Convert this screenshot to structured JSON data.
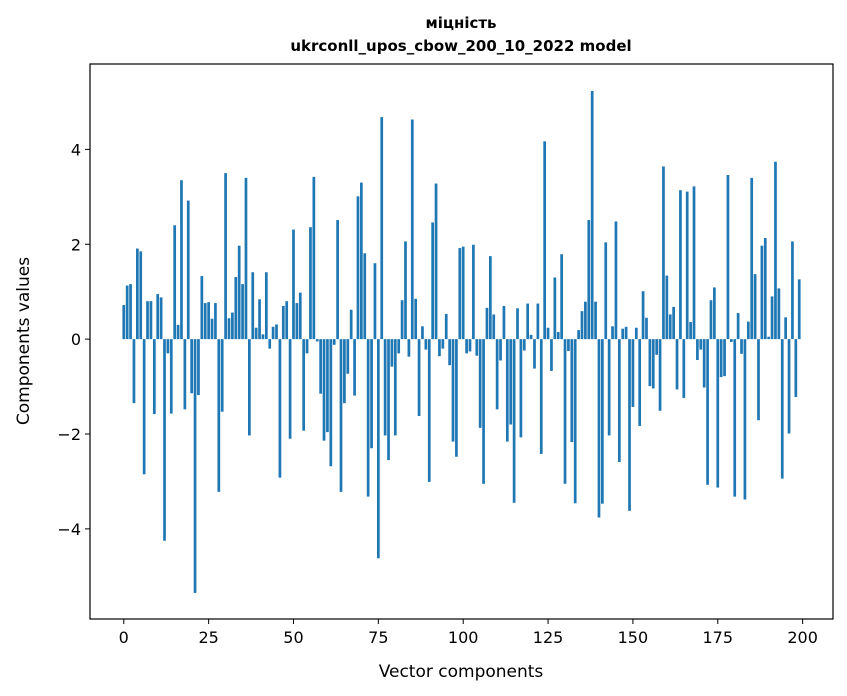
{
  "chart_data": {
    "type": "bar",
    "title": "міцність",
    "subtitle": "ukrconll_upos_cbow_200_10_2022 model",
    "xlabel": "Vector components",
    "ylabel": "Components values",
    "xlim": [
      -9.95,
      208.95
    ],
    "ylim": [
      -5.9,
      5.8
    ],
    "xticks": [
      0,
      25,
      50,
      75,
      100,
      125,
      150,
      175,
      200
    ],
    "yticks": [
      -4,
      -2,
      0,
      2,
      4
    ],
    "ytick_labels": [
      "−4",
      "−2",
      "0",
      "2",
      "4"
    ],
    "grid": false,
    "bar_color": "#1f77b4",
    "x": [
      0,
      1,
      2,
      3,
      4,
      5,
      6,
      7,
      8,
      9,
      10,
      11,
      12,
      13,
      14,
      15,
      16,
      17,
      18,
      19,
      20,
      21,
      22,
      23,
      24,
      25,
      26,
      27,
      28,
      29,
      30,
      31,
      32,
      33,
      34,
      35,
      36,
      37,
      38,
      39,
      40,
      41,
      42,
      43,
      44,
      45,
      46,
      47,
      48,
      49,
      50,
      51,
      52,
      53,
      54,
      55,
      56,
      57,
      58,
      59,
      60,
      61,
      62,
      63,
      64,
      65,
      66,
      67,
      68,
      69,
      70,
      71,
      72,
      73,
      74,
      75,
      76,
      77,
      78,
      79,
      80,
      81,
      82,
      83,
      84,
      85,
      86,
      87,
      88,
      89,
      90,
      91,
      92,
      93,
      94,
      95,
      96,
      97,
      98,
      99,
      100,
      101,
      102,
      103,
      104,
      105,
      106,
      107,
      108,
      109,
      110,
      111,
      112,
      113,
      114,
      115,
      116,
      117,
      118,
      119,
      120,
      121,
      122,
      123,
      124,
      125,
      126,
      127,
      128,
      129,
      130,
      131,
      132,
      133,
      134,
      135,
      136,
      137,
      138,
      139,
      140,
      141,
      142,
      143,
      144,
      145,
      146,
      147,
      148,
      149,
      150,
      151,
      152,
      153,
      154,
      155,
      156,
      157,
      158,
      159,
      160,
      161,
      162,
      163,
      164,
      165,
      166,
      167,
      168,
      169,
      170,
      171,
      172,
      173,
      174,
      175,
      176,
      177,
      178,
      179,
      180,
      181,
      182,
      183,
      184,
      185,
      186,
      187,
      188,
      189,
      190,
      191,
      192,
      193,
      194,
      195,
      196,
      197,
      198,
      199
    ],
    "values": [
      0.72,
      1.13,
      1.16,
      -1.35,
      1.91,
      1.85,
      -2.85,
      0.8,
      0.8,
      -1.58,
      0.95,
      0.88,
      -4.25,
      -0.3,
      -1.57,
      2.4,
      0.3,
      3.35,
      -1.48,
      2.92,
      -1.14,
      -5.35,
      -1.18,
      1.33,
      0.76,
      0.78,
      0.43,
      0.76,
      -3.22,
      -1.53,
      3.5,
      0.44,
      0.56,
      1.31,
      1.97,
      1.16,
      3.4,
      -2.03,
      1.41,
      0.24,
      0.84,
      0.1,
      1.41,
      -0.2,
      0.26,
      0.31,
      -2.92,
      0.7,
      0.8,
      -2.1,
      2.31,
      0.76,
      0.98,
      -1.93,
      -0.3,
      2.36,
      3.42,
      -0.05,
      -1.15,
      -2.14,
      -1.96,
      -2.68,
      -0.12,
      2.51,
      -3.22,
      -1.35,
      -0.73,
      0.62,
      -1.19,
      3.01,
      3.3,
      1.81,
      -3.32,
      -2.3,
      1.6,
      -4.62,
      4.68,
      -2.03,
      -2.55,
      -0.58,
      -2.03,
      -0.3,
      0.82,
      2.06,
      -0.37,
      4.63,
      0.85,
      -1.62,
      0.27,
      -0.22,
      -3.01,
      2.46,
      3.28,
      -0.36,
      -0.2,
      0.53,
      -0.55,
      -2.16,
      -2.48,
      1.92,
      1.95,
      -0.3,
      -0.26,
      1.99,
      -0.35,
      -1.87,
      -3.05,
      0.66,
      1.75,
      0.52,
      -1.48,
      -0.45,
      0.7,
      -2.16,
      -1.8,
      -3.45,
      0.65,
      -2.07,
      -0.24,
      0.75,
      0.09,
      -0.62,
      0.75,
      -2.42,
      4.17,
      0.24,
      -0.67,
      1.3,
      0.15,
      1.79,
      -3.05,
      -0.25,
      -2.17,
      -3.46,
      0.19,
      0.59,
      0.79,
      2.51,
      5.23,
      0.79,
      -3.76,
      -3.47,
      2.04,
      -2.03,
      0.27,
      2.48,
      -2.59,
      0.22,
      0.26,
      -3.62,
      -1.43,
      0.24,
      -1.83,
      1.01,
      0.45,
      -0.99,
      -1.04,
      -0.33,
      -1.51,
      3.64,
      1.34,
      0.52,
      0.68,
      -1.06,
      3.14,
      -1.24,
      3.11,
      0.36,
      3.22,
      -0.44,
      -0.22,
      -1.02,
      -3.07,
      0.82,
      1.09,
      -3.13,
      -0.8,
      -0.78,
      3.46,
      -0.06,
      -3.32,
      0.55,
      -0.31,
      -3.38,
      0.37,
      3.4,
      1.37,
      -1.71,
      1.97,
      2.13,
      0.05,
      0.9,
      3.74,
      1.07,
      -2.94,
      0.46,
      -1.99,
      2.06,
      -1.22,
      1.26
    ]
  }
}
